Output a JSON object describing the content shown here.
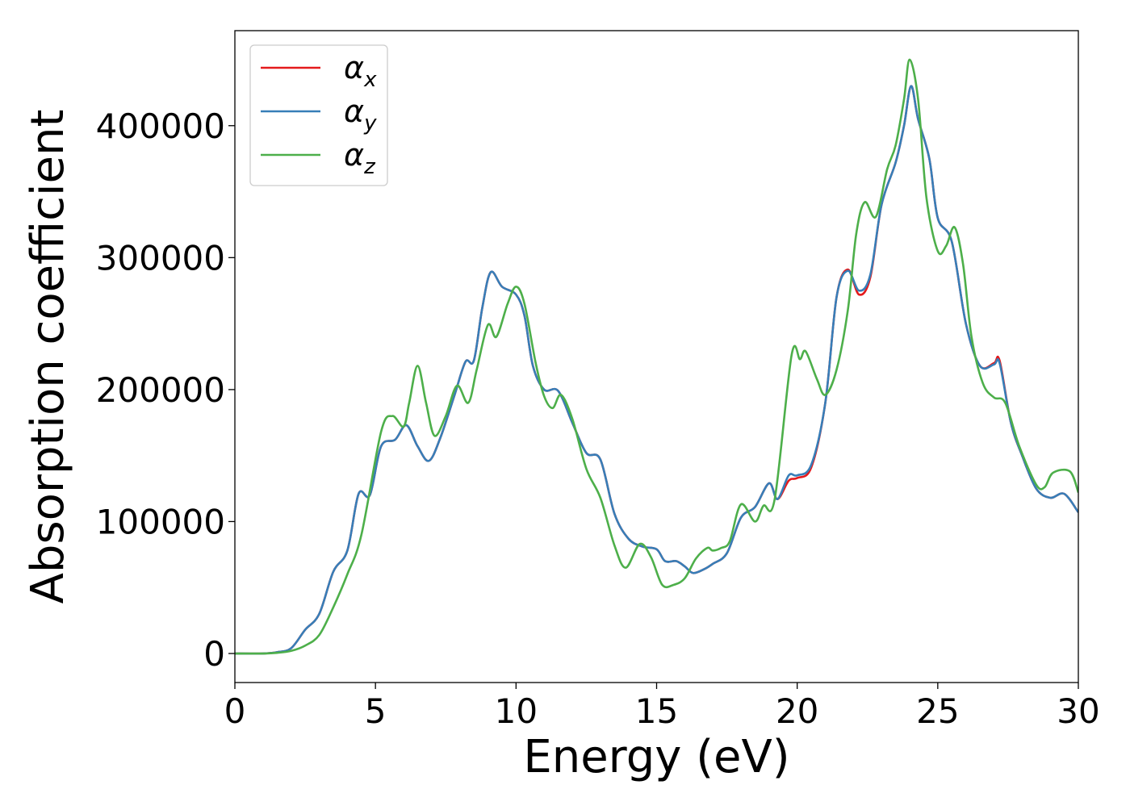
{
  "chart_data": {
    "type": "line",
    "title": "",
    "xlabel": "Energy (eV)",
    "ylabel": "Absorption coefficient",
    "xlim": [
      0,
      30
    ],
    "ylim": [
      -22000,
      472000
    ],
    "xticks": [
      0,
      5,
      10,
      15,
      20,
      25,
      30
    ],
    "yticks": [
      0,
      100000,
      200000,
      300000,
      400000
    ],
    "grid": false,
    "legend_position": "top-left",
    "series": [
      {
        "name": "α_x",
        "legend_base": "α",
        "legend_sub": "x",
        "color": "#e41a1c",
        "points": [
          [
            0,
            0
          ],
          [
            1,
            0
          ],
          [
            1.5,
            1000
          ],
          [
            2,
            4000
          ],
          [
            2.5,
            18000
          ],
          [
            3,
            30000
          ],
          [
            3.5,
            62000
          ],
          [
            4,
            78000
          ],
          [
            4.4,
            121000
          ],
          [
            4.8,
            120000
          ],
          [
            5.2,
            157000
          ],
          [
            5.7,
            162000
          ],
          [
            6.1,
            173000
          ],
          [
            6.5,
            157000
          ],
          [
            6.9,
            146000
          ],
          [
            7.3,
            163000
          ],
          [
            7.8,
            195000
          ],
          [
            8.2,
            221000
          ],
          [
            8.5,
            222000
          ],
          [
            8.8,
            262000
          ],
          [
            9.1,
            289000
          ],
          [
            9.5,
            278000
          ],
          [
            10,
            272000
          ],
          [
            10.3,
            256000
          ],
          [
            10.6,
            218000
          ],
          [
            11,
            200000
          ],
          [
            11.5,
            199000
          ],
          [
            12,
            175000
          ],
          [
            12.5,
            152000
          ],
          [
            13,
            147000
          ],
          [
            13.5,
            106000
          ],
          [
            14,
            87000
          ],
          [
            14.5,
            81000
          ],
          [
            15,
            79000
          ],
          [
            15.3,
            70000
          ],
          [
            15.7,
            70000
          ],
          [
            16,
            66000
          ],
          [
            16.3,
            61000
          ],
          [
            16.7,
            64000
          ],
          [
            17,
            68000
          ],
          [
            17.5,
            76000
          ],
          [
            18,
            103000
          ],
          [
            18.5,
            111000
          ],
          [
            19,
            129000
          ],
          [
            19.3,
            117000
          ],
          [
            19.7,
            131000
          ],
          [
            20,
            133000
          ],
          [
            20.5,
            141000
          ],
          [
            21,
            190000
          ],
          [
            21.4,
            270000
          ],
          [
            21.8,
            291000
          ],
          [
            22.2,
            272000
          ],
          [
            22.6,
            285000
          ],
          [
            23,
            340000
          ],
          [
            23.5,
            372000
          ],
          [
            23.8,
            400000
          ],
          [
            24.05,
            430000
          ],
          [
            24.3,
            405000
          ],
          [
            24.7,
            375000
          ],
          [
            25,
            330000
          ],
          [
            25.5,
            312000
          ],
          [
            26,
            250000
          ],
          [
            26.5,
            218000
          ],
          [
            27,
            220000
          ],
          [
            27.2,
            222000
          ],
          [
            27.6,
            175000
          ],
          [
            28,
            150000
          ],
          [
            28.5,
            125000
          ],
          [
            29,
            118000
          ],
          [
            29.5,
            121000
          ],
          [
            30,
            107000
          ]
        ]
      },
      {
        "name": "α_y",
        "legend_base": "α",
        "legend_sub": "y",
        "color": "#377eb8",
        "points": [
          [
            0,
            0
          ],
          [
            1,
            0
          ],
          [
            1.5,
            1000
          ],
          [
            2,
            4000
          ],
          [
            2.5,
            18000
          ],
          [
            3,
            30000
          ],
          [
            3.5,
            62000
          ],
          [
            4,
            78000
          ],
          [
            4.4,
            121000
          ],
          [
            4.8,
            120000
          ],
          [
            5.2,
            157000
          ],
          [
            5.7,
            162000
          ],
          [
            6.1,
            173000
          ],
          [
            6.5,
            157000
          ],
          [
            6.9,
            146000
          ],
          [
            7.3,
            163000
          ],
          [
            7.8,
            195000
          ],
          [
            8.2,
            221000
          ],
          [
            8.5,
            222000
          ],
          [
            8.8,
            262000
          ],
          [
            9.1,
            289000
          ],
          [
            9.5,
            278000
          ],
          [
            10,
            272000
          ],
          [
            10.3,
            256000
          ],
          [
            10.6,
            218000
          ],
          [
            11,
            200000
          ],
          [
            11.5,
            199000
          ],
          [
            12,
            175000
          ],
          [
            12.5,
            152000
          ],
          [
            13,
            147000
          ],
          [
            13.5,
            106000
          ],
          [
            14,
            87000
          ],
          [
            14.5,
            81000
          ],
          [
            15,
            79000
          ],
          [
            15.3,
            70000
          ],
          [
            15.7,
            70000
          ],
          [
            16,
            66000
          ],
          [
            16.3,
            61000
          ],
          [
            16.7,
            64000
          ],
          [
            17,
            68000
          ],
          [
            17.5,
            76000
          ],
          [
            18,
            103000
          ],
          [
            18.5,
            111000
          ],
          [
            19,
            129000
          ],
          [
            19.3,
            117000
          ],
          [
            19.7,
            135000
          ],
          [
            20,
            135000
          ],
          [
            20.5,
            143000
          ],
          [
            21,
            190000
          ],
          [
            21.4,
            270000
          ],
          [
            21.8,
            290000
          ],
          [
            22.2,
            275000
          ],
          [
            22.6,
            287000
          ],
          [
            23,
            340000
          ],
          [
            23.5,
            372000
          ],
          [
            23.8,
            400000
          ],
          [
            24.05,
            430000
          ],
          [
            24.3,
            405000
          ],
          [
            24.7,
            375000
          ],
          [
            25,
            330000
          ],
          [
            25.5,
            312000
          ],
          [
            26,
            250000
          ],
          [
            26.5,
            218000
          ],
          [
            27,
            219000
          ],
          [
            27.2,
            220000
          ],
          [
            27.6,
            175000
          ],
          [
            28,
            150000
          ],
          [
            28.5,
            125000
          ],
          [
            29,
            118000
          ],
          [
            29.5,
            121000
          ],
          [
            30,
            107000
          ]
        ]
      },
      {
        "name": "α_z",
        "legend_base": "α",
        "legend_sub": "z",
        "color": "#4daf4a",
        "points": [
          [
            0,
            0
          ],
          [
            1,
            0
          ],
          [
            1.5,
            500
          ],
          [
            2,
            2000
          ],
          [
            2.5,
            6000
          ],
          [
            3,
            14000
          ],
          [
            3.5,
            35000
          ],
          [
            4,
            60000
          ],
          [
            4.5,
            90000
          ],
          [
            5.2,
            168000
          ],
          [
            5.6,
            180000
          ],
          [
            6,
            172000
          ],
          [
            6.2,
            190000
          ],
          [
            6.5,
            218000
          ],
          [
            6.8,
            190000
          ],
          [
            7.1,
            165000
          ],
          [
            7.5,
            180000
          ],
          [
            7.9,
            203000
          ],
          [
            8.3,
            190000
          ],
          [
            8.6,
            215000
          ],
          [
            9,
            249000
          ],
          [
            9.3,
            240000
          ],
          [
            9.7,
            265000
          ],
          [
            10,
            278000
          ],
          [
            10.3,
            265000
          ],
          [
            10.7,
            220000
          ],
          [
            11,
            195000
          ],
          [
            11.3,
            186000
          ],
          [
            11.6,
            196000
          ],
          [
            12,
            178000
          ],
          [
            12.5,
            140000
          ],
          [
            13,
            118000
          ],
          [
            13.5,
            82000
          ],
          [
            13.9,
            65000
          ],
          [
            14.4,
            83000
          ],
          [
            14.8,
            73000
          ],
          [
            15.2,
            52000
          ],
          [
            15.6,
            52000
          ],
          [
            16,
            57000
          ],
          [
            16.4,
            72000
          ],
          [
            16.8,
            80000
          ],
          [
            17,
            78000
          ],
          [
            17.3,
            80000
          ],
          [
            17.6,
            85000
          ],
          [
            18,
            113000
          ],
          [
            18.5,
            100000
          ],
          [
            18.8,
            112000
          ],
          [
            19.2,
            117000
          ],
          [
            19.8,
            226000
          ],
          [
            20.1,
            223000
          ],
          [
            20.3,
            229000
          ],
          [
            20.7,
            208000
          ],
          [
            21,
            196000
          ],
          [
            21.4,
            215000
          ],
          [
            21.8,
            260000
          ],
          [
            22.1,
            318000
          ],
          [
            22.4,
            342000
          ],
          [
            22.8,
            331000
          ],
          [
            23.2,
            367000
          ],
          [
            23.5,
            385000
          ],
          [
            23.8,
            420000
          ],
          [
            24,
            450000
          ],
          [
            24.3,
            420000
          ],
          [
            24.6,
            345000
          ],
          [
            25,
            305000
          ],
          [
            25.3,
            309000
          ],
          [
            25.6,
            323000
          ],
          [
            25.9,
            295000
          ],
          [
            26.2,
            240000
          ],
          [
            26.6,
            205000
          ],
          [
            27,
            194000
          ],
          [
            27.4,
            190000
          ],
          [
            27.9,
            157000
          ],
          [
            28.5,
            128000
          ],
          [
            28.8,
            126000
          ],
          [
            29.1,
            137000
          ],
          [
            29.7,
            138000
          ],
          [
            30,
            122000
          ]
        ]
      }
    ]
  }
}
